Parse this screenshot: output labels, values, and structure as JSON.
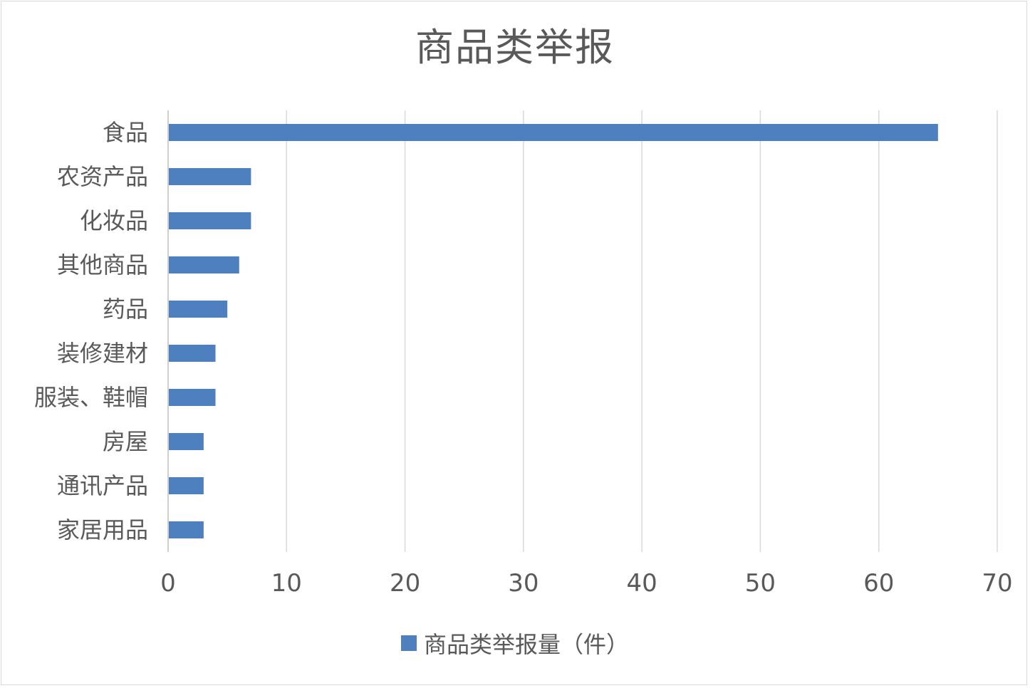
{
  "chart_data": {
    "type": "bar",
    "orientation": "horizontal",
    "title": "商品类举报",
    "categories": [
      "食品",
      "农资产品",
      "化妆品",
      "其他商品",
      "药品",
      "装修建材",
      "服装、鞋帽",
      "房屋",
      "通讯产品",
      "家居用品"
    ],
    "series": [
      {
        "name": "商品类举报量（件）",
        "values": [
          65,
          7,
          7,
          6,
          5,
          4,
          4,
          3,
          3,
          3
        ],
        "color": "#4e7fbe"
      }
    ],
    "xlim": [
      0,
      70
    ],
    "xticks": [
      "0",
      "10",
      "20",
      "30",
      "40",
      "50",
      "60",
      "70"
    ],
    "xlabel": "",
    "ylabel": "",
    "grid": "vertical",
    "legend": "bottom"
  }
}
